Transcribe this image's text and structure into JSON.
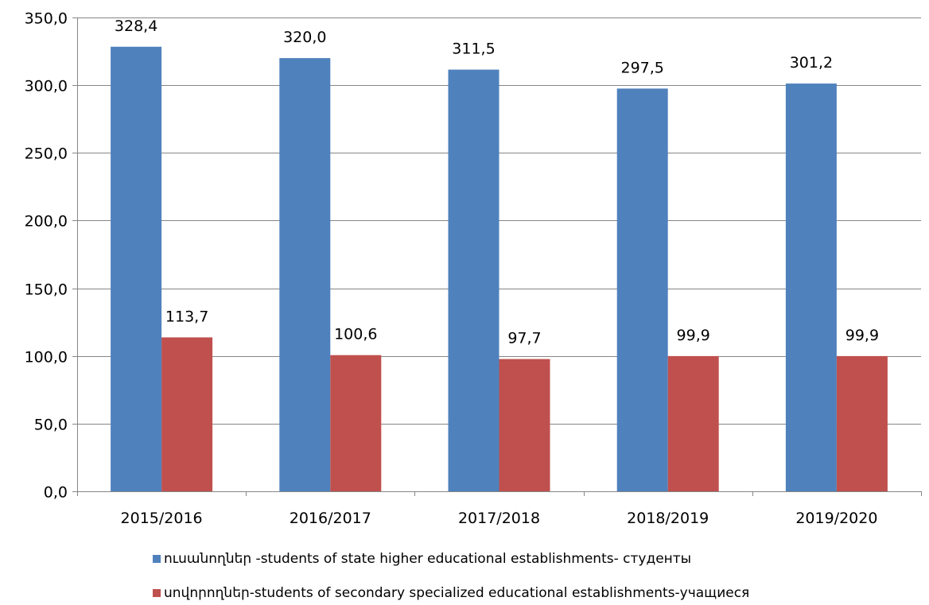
{
  "chart_data": {
    "type": "bar",
    "categories": [
      "2015/2016",
      "2016/2017",
      "2017/2018",
      "2018/2019",
      "2019/2020"
    ],
    "series": [
      {
        "name": "ուսանողներ -students of state higher educational establishments- студенты",
        "color": "#4F81BD",
        "values": [
          328.4,
          320.0,
          311.5,
          297.5,
          301.2
        ],
        "labels": [
          "328,4",
          "320,0",
          "311,5",
          "297,5",
          "301,2"
        ]
      },
      {
        "name": "սովորողներ-students of secondary specialized educational establishments-учащиеся",
        "color": "#C0504D",
        "values": [
          113.7,
          100.6,
          97.7,
          99.9,
          99.9
        ],
        "labels": [
          "113,7",
          "100,6",
          "97,7",
          "99,9",
          "99,9"
        ]
      }
    ],
    "ylim": [
      0,
      350
    ],
    "yticks": [
      0,
      50,
      100,
      150,
      200,
      250,
      300,
      350
    ],
    "ytick_labels": [
      "0,0",
      "50,0",
      "100,0",
      "150,0",
      "200,0",
      "250,0",
      "300,0",
      "350,0"
    ],
    "grid": true,
    "legend_position": "bottom"
  }
}
